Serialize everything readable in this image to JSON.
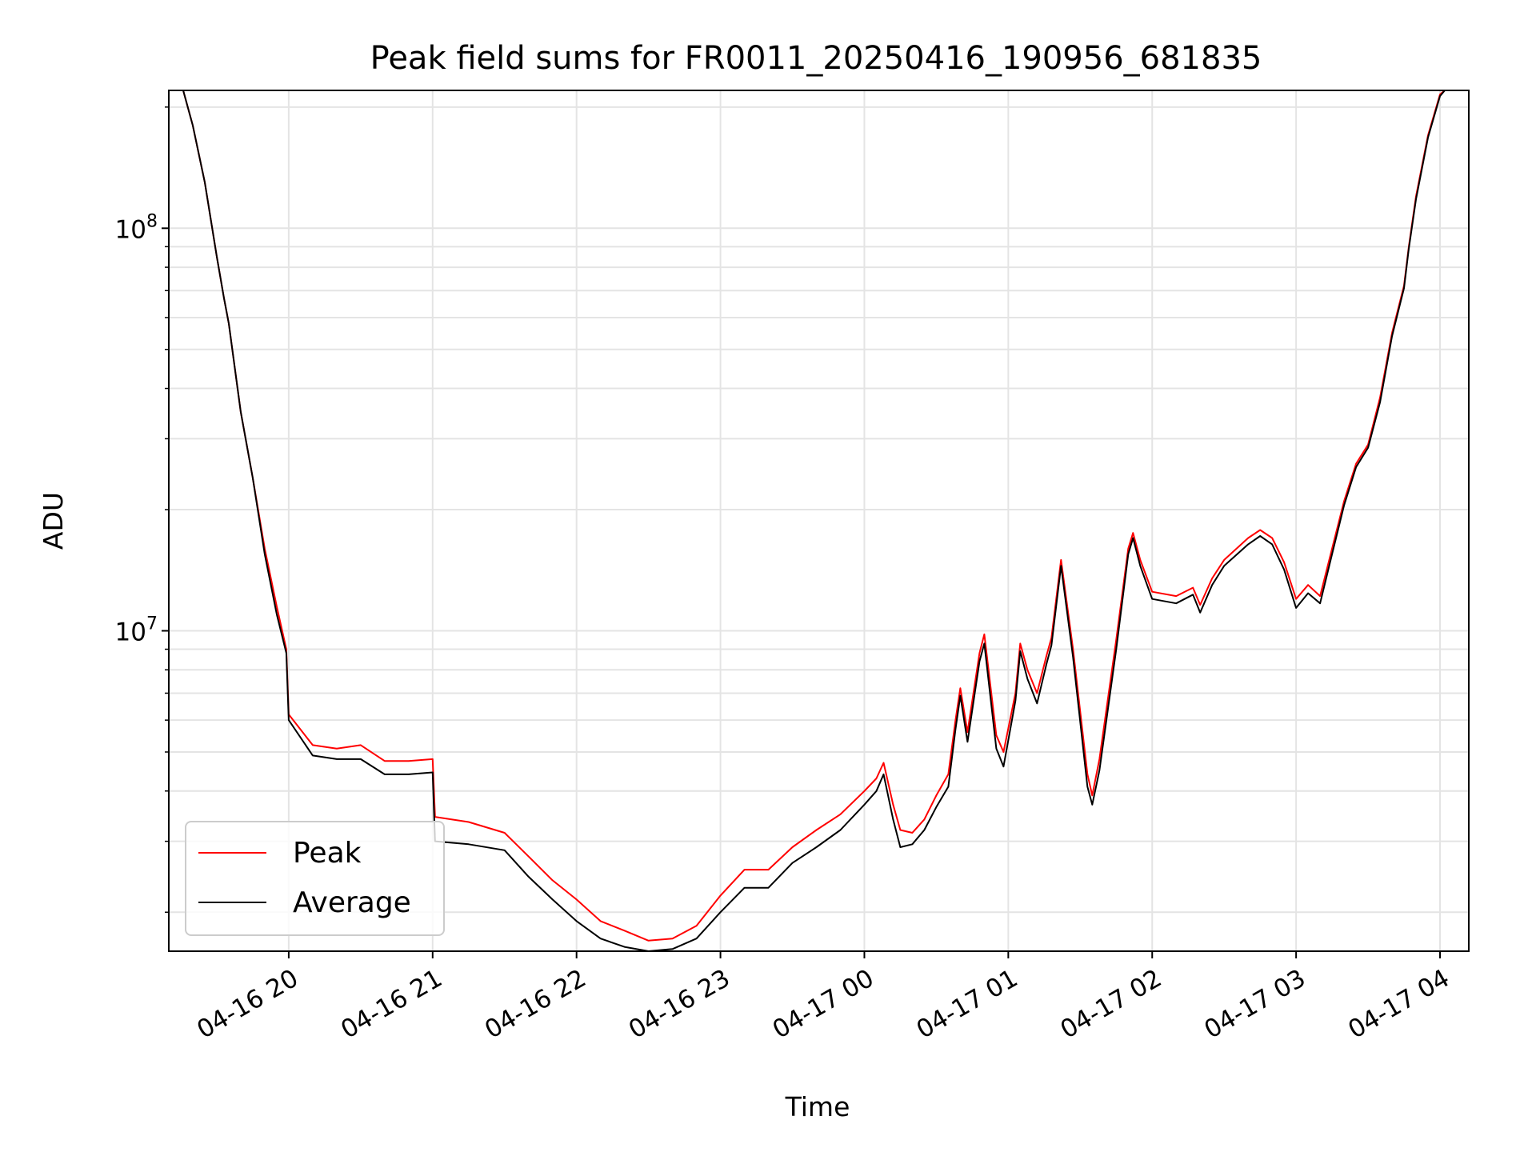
{
  "chart_data": {
    "type": "line",
    "title": "Peak field sums for FR0011_20250416_190956_681835",
    "xlabel": "Time",
    "ylabel": "ADU",
    "yscale": "log",
    "xlim": [
      "2025-04-16 19:10",
      "2025-04-17 04:12"
    ],
    "ylim": [
      1600000,
      220000000
    ],
    "x_tick_labels": [
      "04-16 20",
      "04-16 21",
      "04-16 22",
      "04-16 23",
      "04-17 00",
      "04-17 01",
      "04-17 02",
      "04-17 03",
      "04-17 04"
    ],
    "y_tick_labels": [
      {
        "base": "10",
        "exp": "7"
      },
      {
        "base": "10",
        "exp": "8"
      }
    ],
    "grid": true,
    "legend_position": "lower left",
    "series": [
      {
        "name": "Peak",
        "color": "#ff0000",
        "points": [
          [
            "2025-04-16 19:16",
            220000000
          ],
          [
            "2025-04-16 19:20",
            180000000
          ],
          [
            "2025-04-16 19:25",
            130000000
          ],
          [
            "2025-04-16 19:30",
            85000000
          ],
          [
            "2025-04-16 19:33",
            67000000
          ],
          [
            "2025-04-16 19:35",
            58000000
          ],
          [
            "2025-04-16 19:40",
            35000000
          ],
          [
            "2025-04-16 19:45",
            24000000
          ],
          [
            "2025-04-16 19:50",
            16000000
          ],
          [
            "2025-04-16 19:55",
            11500000
          ],
          [
            "2025-04-16 19:59",
            9000000
          ],
          [
            "2025-04-16 20:00",
            6200000
          ],
          [
            "2025-04-16 20:10",
            5200000
          ],
          [
            "2025-04-16 20:20",
            5100000
          ],
          [
            "2025-04-16 20:30",
            5200000
          ],
          [
            "2025-04-16 20:40",
            4750000
          ],
          [
            "2025-04-16 20:50",
            4750000
          ],
          [
            "2025-04-16 21:00",
            4800000
          ],
          [
            "2025-04-16 21:01",
            3450000
          ],
          [
            "2025-04-16 21:15",
            3350000
          ],
          [
            "2025-04-16 21:30",
            3150000
          ],
          [
            "2025-04-16 21:40",
            2750000
          ],
          [
            "2025-04-16 21:50",
            2400000
          ],
          [
            "2025-04-16 22:00",
            2150000
          ],
          [
            "2025-04-16 22:10",
            1900000
          ],
          [
            "2025-04-16 22:20",
            1800000
          ],
          [
            "2025-04-16 22:30",
            1700000
          ],
          [
            "2025-04-16 22:40",
            1720000
          ],
          [
            "2025-04-16 22:50",
            1850000
          ],
          [
            "2025-04-16 23:00",
            2200000
          ],
          [
            "2025-04-16 23:10",
            2550000
          ],
          [
            "2025-04-16 23:20",
            2550000
          ],
          [
            "2025-04-16 23:30",
            2900000
          ],
          [
            "2025-04-16 23:40",
            3200000
          ],
          [
            "2025-04-16 23:50",
            3500000
          ],
          [
            "2025-04-17 00:00",
            4000000
          ],
          [
            "2025-04-17 00:05",
            4300000
          ],
          [
            "2025-04-17 00:08",
            4700000
          ],
          [
            "2025-04-17 00:12",
            3700000
          ],
          [
            "2025-04-17 00:15",
            3200000
          ],
          [
            "2025-04-17 00:20",
            3150000
          ],
          [
            "2025-04-17 00:25",
            3400000
          ],
          [
            "2025-04-17 00:30",
            3900000
          ],
          [
            "2025-04-17 00:35",
            4400000
          ],
          [
            "2025-04-17 00:38",
            6000000
          ],
          [
            "2025-04-17 00:40",
            7200000
          ],
          [
            "2025-04-17 00:43",
            5600000
          ],
          [
            "2025-04-17 00:48",
            8800000
          ],
          [
            "2025-04-17 00:50",
            9800000
          ],
          [
            "2025-04-17 00:55",
            5500000
          ],
          [
            "2025-04-17 00:58",
            5000000
          ],
          [
            "2025-04-17 01:03",
            7000000
          ],
          [
            "2025-04-17 01:05",
            9300000
          ],
          [
            "2025-04-17 01:08",
            8000000
          ],
          [
            "2025-04-17 01:12",
            7000000
          ],
          [
            "2025-04-17 01:16",
            8700000
          ],
          [
            "2025-04-17 01:18",
            9600000
          ],
          [
            "2025-04-17 01:22",
            15000000
          ],
          [
            "2025-04-17 01:27",
            9000000
          ],
          [
            "2025-04-17 01:33",
            4400000
          ],
          [
            "2025-04-17 01:35",
            3900000
          ],
          [
            "2025-04-17 01:38",
            4800000
          ],
          [
            "2025-04-17 01:45",
            9500000
          ],
          [
            "2025-04-17 01:50",
            16000000
          ],
          [
            "2025-04-17 01:52",
            17500000
          ],
          [
            "2025-04-17 01:55",
            15000000
          ],
          [
            "2025-04-17 02:00",
            12500000
          ],
          [
            "2025-04-17 02:10",
            12200000
          ],
          [
            "2025-04-17 02:17",
            12800000
          ],
          [
            "2025-04-17 02:20",
            11600000
          ],
          [
            "2025-04-17 02:25",
            13500000
          ],
          [
            "2025-04-17 02:30",
            15000000
          ],
          [
            "2025-04-17 02:40",
            17000000
          ],
          [
            "2025-04-17 02:45",
            17800000
          ],
          [
            "2025-04-17 02:50",
            17000000
          ],
          [
            "2025-04-17 02:55",
            14800000
          ],
          [
            "2025-04-17 03:00",
            12000000
          ],
          [
            "2025-04-17 03:05",
            13000000
          ],
          [
            "2025-04-17 03:10",
            12200000
          ],
          [
            "2025-04-17 03:15",
            16000000
          ],
          [
            "2025-04-17 03:20",
            21000000
          ],
          [
            "2025-04-17 03:25",
            26000000
          ],
          [
            "2025-04-17 03:30",
            29000000
          ],
          [
            "2025-04-17 03:35",
            38000000
          ],
          [
            "2025-04-17 03:40",
            55000000
          ],
          [
            "2025-04-17 03:45",
            72000000
          ],
          [
            "2025-04-17 03:47",
            90000000
          ],
          [
            "2025-04-17 03:50",
            120000000
          ],
          [
            "2025-04-17 03:55",
            170000000
          ],
          [
            "2025-04-17 04:00",
            215000000
          ],
          [
            "2025-04-17 04:02",
            220000000
          ]
        ]
      },
      {
        "name": "Average",
        "color": "#000000",
        "points": [
          [
            "2025-04-16 19:16",
            220000000
          ],
          [
            "2025-04-16 19:20",
            180000000
          ],
          [
            "2025-04-16 19:25",
            130000000
          ],
          [
            "2025-04-16 19:30",
            85000000
          ],
          [
            "2025-04-16 19:33",
            67000000
          ],
          [
            "2025-04-16 19:35",
            58000000
          ],
          [
            "2025-04-16 19:40",
            35000000
          ],
          [
            "2025-04-16 19:45",
            24000000
          ],
          [
            "2025-04-16 19:50",
            15500000
          ],
          [
            "2025-04-16 19:55",
            11000000
          ],
          [
            "2025-04-16 19:59",
            8800000
          ],
          [
            "2025-04-16 20:00",
            6000000
          ],
          [
            "2025-04-16 20:10",
            4900000
          ],
          [
            "2025-04-16 20:20",
            4800000
          ],
          [
            "2025-04-16 20:30",
            4800000
          ],
          [
            "2025-04-16 20:40",
            4400000
          ],
          [
            "2025-04-16 20:50",
            4400000
          ],
          [
            "2025-04-16 21:00",
            4450000
          ],
          [
            "2025-04-16 21:01",
            3000000
          ],
          [
            "2025-04-16 21:15",
            2950000
          ],
          [
            "2025-04-16 21:30",
            2850000
          ],
          [
            "2025-04-16 21:40",
            2450000
          ],
          [
            "2025-04-16 21:50",
            2150000
          ],
          [
            "2025-04-16 22:00",
            1900000
          ],
          [
            "2025-04-16 22:10",
            1720000
          ],
          [
            "2025-04-16 22:20",
            1640000
          ],
          [
            "2025-04-16 22:30",
            1600000
          ],
          [
            "2025-04-16 22:40",
            1620000
          ],
          [
            "2025-04-16 22:50",
            1720000
          ],
          [
            "2025-04-16 23:00",
            2000000
          ],
          [
            "2025-04-16 23:10",
            2300000
          ],
          [
            "2025-04-16 23:20",
            2300000
          ],
          [
            "2025-04-16 23:30",
            2650000
          ],
          [
            "2025-04-16 23:40",
            2900000
          ],
          [
            "2025-04-16 23:50",
            3200000
          ],
          [
            "2025-04-17 00:00",
            3700000
          ],
          [
            "2025-04-17 00:05",
            4000000
          ],
          [
            "2025-04-17 00:08",
            4400000
          ],
          [
            "2025-04-17 00:12",
            3400000
          ],
          [
            "2025-04-17 00:15",
            2900000
          ],
          [
            "2025-04-17 00:20",
            2950000
          ],
          [
            "2025-04-17 00:25",
            3200000
          ],
          [
            "2025-04-17 00:30",
            3650000
          ],
          [
            "2025-04-17 00:35",
            4100000
          ],
          [
            "2025-04-17 00:38",
            5700000
          ],
          [
            "2025-04-17 00:40",
            6900000
          ],
          [
            "2025-04-17 00:43",
            5300000
          ],
          [
            "2025-04-17 00:48",
            8400000
          ],
          [
            "2025-04-17 00:50",
            9300000
          ],
          [
            "2025-04-17 00:55",
            5100000
          ],
          [
            "2025-04-17 00:58",
            4600000
          ],
          [
            "2025-04-17 01:03",
            6700000
          ],
          [
            "2025-04-17 01:05",
            8900000
          ],
          [
            "2025-04-17 01:08",
            7600000
          ],
          [
            "2025-04-17 01:12",
            6600000
          ],
          [
            "2025-04-17 01:16",
            8300000
          ],
          [
            "2025-04-17 01:18",
            9200000
          ],
          [
            "2025-04-17 01:22",
            14500000
          ],
          [
            "2025-04-17 01:27",
            8600000
          ],
          [
            "2025-04-17 01:33",
            4100000
          ],
          [
            "2025-04-17 01:35",
            3700000
          ],
          [
            "2025-04-17 01:38",
            4500000
          ],
          [
            "2025-04-17 01:45",
            9000000
          ],
          [
            "2025-04-17 01:50",
            15500000
          ],
          [
            "2025-04-17 01:52",
            17000000
          ],
          [
            "2025-04-17 01:55",
            14500000
          ],
          [
            "2025-04-17 02:00",
            12000000
          ],
          [
            "2025-04-17 02:10",
            11700000
          ],
          [
            "2025-04-17 02:17",
            12300000
          ],
          [
            "2025-04-17 02:20",
            11100000
          ],
          [
            "2025-04-17 02:25",
            13000000
          ],
          [
            "2025-04-17 02:30",
            14500000
          ],
          [
            "2025-04-17 02:40",
            16400000
          ],
          [
            "2025-04-17 02:45",
            17200000
          ],
          [
            "2025-04-17 02:50",
            16400000
          ],
          [
            "2025-04-17 02:55",
            14200000
          ],
          [
            "2025-04-17 03:00",
            11400000
          ],
          [
            "2025-04-17 03:05",
            12400000
          ],
          [
            "2025-04-17 03:10",
            11700000
          ],
          [
            "2025-04-17 03:15",
            15500000
          ],
          [
            "2025-04-17 03:20",
            20500000
          ],
          [
            "2025-04-17 03:25",
            25500000
          ],
          [
            "2025-04-17 03:30",
            28500000
          ],
          [
            "2025-04-17 03:35",
            37000000
          ],
          [
            "2025-04-17 03:40",
            54000000
          ],
          [
            "2025-04-17 03:45",
            71000000
          ],
          [
            "2025-04-17 03:47",
            89000000
          ],
          [
            "2025-04-17 03:50",
            118000000
          ],
          [
            "2025-04-17 03:55",
            168000000
          ],
          [
            "2025-04-17 04:00",
            213000000
          ],
          [
            "2025-04-17 04:02",
            220000000
          ]
        ]
      }
    ]
  }
}
